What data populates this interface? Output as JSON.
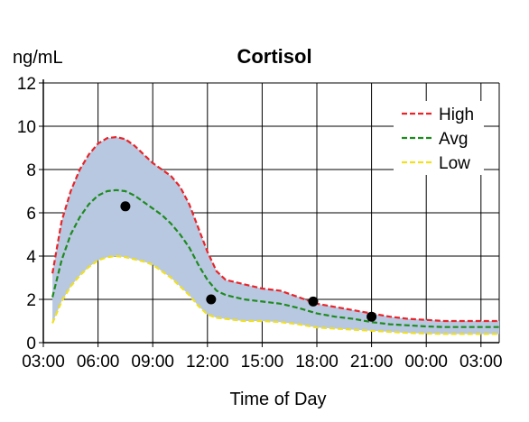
{
  "chart_data": {
    "type": "line",
    "title": "Cortisol",
    "ylabel": "ng/mL",
    "xlabel": "Time of Day",
    "ylim": [
      0,
      12
    ],
    "yticks": [
      0,
      2,
      4,
      6,
      8,
      10,
      12
    ],
    "xlim_hours": [
      3,
      28
    ],
    "xticks": [
      {
        "h": 3,
        "label": "03:00"
      },
      {
        "h": 6,
        "label": "06:00"
      },
      {
        "h": 9,
        "label": "09:00"
      },
      {
        "h": 12,
        "label": "12:00"
      },
      {
        "h": 15,
        "label": "15:00"
      },
      {
        "h": 18,
        "label": "18:00"
      },
      {
        "h": 21,
        "label": "21:00"
      },
      {
        "h": 24,
        "label": "00:00"
      },
      {
        "h": 27,
        "label": "03:00"
      }
    ],
    "grid": true,
    "legend_position": "top-right",
    "band_color": "#b8c8e0",
    "series": [
      {
        "name": "High",
        "color": "#e8252a",
        "x": [
          3.5,
          4.0,
          4.5,
          5.0,
          5.5,
          6.0,
          6.5,
          7.0,
          7.5,
          8.0,
          8.5,
          9.0,
          9.5,
          10.0,
          10.5,
          11.0,
          11.5,
          12.0,
          12.5,
          13.0,
          14.0,
          15.0,
          16.0,
          17.0,
          18.0,
          19.0,
          20.0,
          21.0,
          22.0,
          23.0,
          24.0,
          25.0,
          26.0,
          27.0,
          28.0
        ],
        "y": [
          3.2,
          5.6,
          7.0,
          8.0,
          8.7,
          9.2,
          9.45,
          9.5,
          9.4,
          9.1,
          8.7,
          8.3,
          8.0,
          7.7,
          7.2,
          6.4,
          5.3,
          4.2,
          3.3,
          2.9,
          2.7,
          2.5,
          2.4,
          2.1,
          1.8,
          1.65,
          1.5,
          1.35,
          1.2,
          1.1,
          1.05,
          1.0,
          1.0,
          1.0,
          1.0
        ]
      },
      {
        "name": "Avg",
        "color": "#1f8a1f",
        "x": [
          3.5,
          4.0,
          4.5,
          5.0,
          5.5,
          6.0,
          6.5,
          7.0,
          7.5,
          8.0,
          8.5,
          9.0,
          9.5,
          10.0,
          10.5,
          11.0,
          11.5,
          12.0,
          12.5,
          13.0,
          14.0,
          15.0,
          16.0,
          17.0,
          18.0,
          19.0,
          20.0,
          21.0,
          22.0,
          23.0,
          24.0,
          25.0,
          26.0,
          27.0,
          28.0
        ],
        "y": [
          2.1,
          3.8,
          5.0,
          5.8,
          6.4,
          6.8,
          7.0,
          7.05,
          7.0,
          6.8,
          6.5,
          6.2,
          5.9,
          5.5,
          5.0,
          4.4,
          3.6,
          2.9,
          2.4,
          2.2,
          2.0,
          1.9,
          1.8,
          1.6,
          1.35,
          1.2,
          1.1,
          0.95,
          0.85,
          0.8,
          0.75,
          0.72,
          0.72,
          0.72,
          0.72
        ]
      },
      {
        "name": "Low",
        "color": "#f0e020",
        "x": [
          3.5,
          4.0,
          4.5,
          5.0,
          5.5,
          6.0,
          6.5,
          7.0,
          7.5,
          8.0,
          8.5,
          9.0,
          9.5,
          10.0,
          10.5,
          11.0,
          11.5,
          12.0,
          12.5,
          13.0,
          14.0,
          15.0,
          16.0,
          17.0,
          18.0,
          19.0,
          20.0,
          21.0,
          22.0,
          23.0,
          24.0,
          25.0,
          26.0,
          27.0,
          28.0
        ],
        "y": [
          0.9,
          1.9,
          2.6,
          3.1,
          3.5,
          3.8,
          3.95,
          4.0,
          3.95,
          3.85,
          3.75,
          3.6,
          3.3,
          3.0,
          2.6,
          2.2,
          1.7,
          1.3,
          1.15,
          1.1,
          1.0,
          1.0,
          0.95,
          0.85,
          0.7,
          0.65,
          0.6,
          0.55,
          0.5,
          0.45,
          0.42,
          0.4,
          0.4,
          0.4,
          0.4
        ]
      }
    ],
    "points": [
      {
        "x": 7.5,
        "y": 6.3
      },
      {
        "x": 12.2,
        "y": 2.0
      },
      {
        "x": 17.8,
        "y": 1.9
      },
      {
        "x": 21.0,
        "y": 1.2
      }
    ]
  }
}
